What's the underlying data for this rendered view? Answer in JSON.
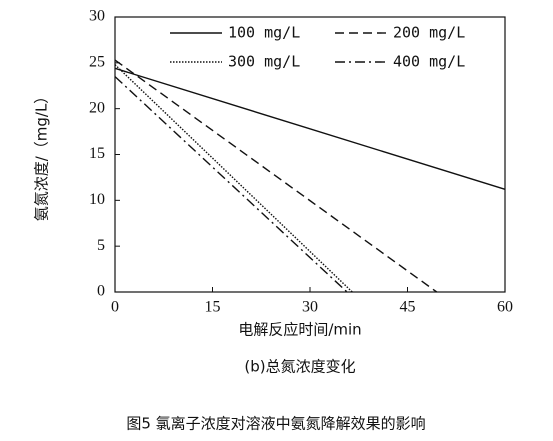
{
  "chart_data": {
    "type": "line",
    "y_label": "氨氮浓度/（mg/L）",
    "x_label": "电解反应时间/min",
    "subtitle": "(b)总氮浓度变化",
    "caption": "图5  氯离子浓度对溶液中氨氮降解效果的影响",
    "xlim": [
      0,
      60
    ],
    "xticks": [
      0,
      15,
      30,
      45,
      60
    ],
    "ylim": [
      0,
      30
    ],
    "yticks": [
      0,
      5,
      10,
      15,
      20,
      25,
      30
    ],
    "legend": "top",
    "series": [
      {
        "name": "100 mg/L",
        "color": "#111111",
        "dash": "solid",
        "x": [
          0,
          60
        ],
        "values": [
          24.4,
          11.2
        ]
      },
      {
        "name": "200 mg/L",
        "color": "#111111",
        "dash": "dashed",
        "x": [
          0,
          49.5
        ],
        "values": [
          25.3,
          0
        ]
      },
      {
        "name": "300 mg/L",
        "color": "#111111",
        "dash": "dotted",
        "x": [
          0,
          36.5
        ],
        "values": [
          24.8,
          0
        ]
      },
      {
        "name": "400 mg/L",
        "color": "#111111",
        "dash": "dashdot",
        "x": [
          0,
          35.7
        ],
        "values": [
          23.5,
          0
        ]
      }
    ]
  }
}
